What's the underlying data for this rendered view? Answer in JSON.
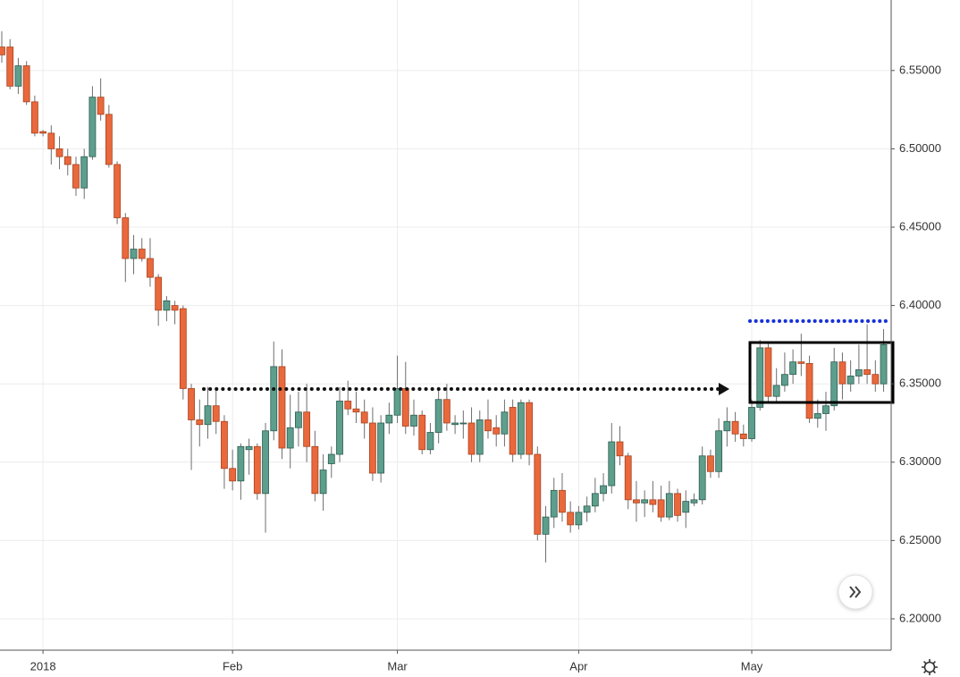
{
  "chart_data": {
    "type": "candlestick",
    "up_color": "#5d9e8d",
    "up_border": "#2e5d51",
    "down_color": "#e9683c",
    "down_border": "#a8431f",
    "wick_color": "#6e6e70",
    "grid": true,
    "ylim": [
      6.18,
      6.595
    ],
    "yticks": [
      {
        "value": 6.2,
        "label": "6.20000"
      },
      {
        "value": 6.25,
        "label": "6.25000"
      },
      {
        "value": 6.3,
        "label": "6.30000"
      },
      {
        "value": 6.35,
        "label": "6.35000"
      },
      {
        "value": 6.4,
        "label": "6.40000"
      },
      {
        "value": 6.45,
        "label": "6.45000"
      },
      {
        "value": 6.5,
        "label": "6.50000"
      },
      {
        "value": 6.55,
        "label": "6.55000"
      }
    ],
    "categories": [
      null,
      null,
      null,
      null,
      null,
      "2018",
      null,
      null,
      null,
      null,
      null,
      null,
      null,
      null,
      null,
      null,
      null,
      null,
      null,
      null,
      null,
      null,
      null,
      null,
      null,
      null,
      null,
      null,
      "Feb",
      null,
      null,
      null,
      null,
      null,
      null,
      null,
      null,
      null,
      null,
      null,
      null,
      null,
      null,
      null,
      null,
      null,
      null,
      null,
      "Mar",
      null,
      null,
      null,
      null,
      null,
      null,
      null,
      null,
      null,
      null,
      null,
      null,
      null,
      null,
      null,
      null,
      null,
      null,
      null,
      null,
      null,
      "Apr",
      null,
      null,
      null,
      null,
      null,
      null,
      null,
      null,
      null,
      null,
      null,
      null,
      null,
      null,
      null,
      null,
      null,
      null,
      null,
      null,
      "May",
      null,
      null,
      null,
      null,
      null,
      null,
      null,
      null,
      null,
      null,
      null,
      null,
      null,
      null,
      null,
      null
    ],
    "ohlc": [
      [
        6.565,
        6.575,
        6.555,
        6.56
      ],
      [
        6.565,
        6.57,
        6.538,
        6.54
      ],
      [
        6.54,
        6.558,
        6.535,
        6.553
      ],
      [
        6.553,
        6.556,
        6.528,
        6.53
      ],
      [
        6.53,
        6.534,
        6.508,
        6.51
      ],
      [
        6.511,
        6.512,
        6.508,
        6.51
      ],
      [
        6.51,
        6.515,
        6.49,
        6.5
      ],
      [
        6.5,
        6.508,
        6.487,
        6.495
      ],
      [
        6.495,
        6.5,
        6.483,
        6.49
      ],
      [
        6.49,
        6.495,
        6.47,
        6.475
      ],
      [
        6.475,
        6.5,
        6.468,
        6.495
      ],
      [
        6.495,
        6.54,
        6.493,
        6.533
      ],
      [
        6.533,
        6.545,
        6.518,
        6.522
      ],
      [
        6.522,
        6.528,
        6.488,
        6.49
      ],
      [
        6.49,
        6.492,
        6.452,
        6.456
      ],
      [
        6.456,
        6.459,
        6.415,
        6.43
      ],
      [
        6.43,
        6.445,
        6.42,
        6.436
      ],
      [
        6.436,
        6.443,
        6.428,
        6.43
      ],
      [
        6.43,
        6.443,
        6.412,
        6.418
      ],
      [
        6.418,
        6.42,
        6.387,
        6.397
      ],
      [
        6.397,
        6.406,
        6.39,
        6.403
      ],
      [
        6.4,
        6.403,
        6.388,
        6.397
      ],
      [
        6.398,
        6.4,
        6.34,
        6.347
      ],
      [
        6.347,
        6.35,
        6.295,
        6.327
      ],
      [
        6.327,
        6.34,
        6.31,
        6.324
      ],
      [
        6.324,
        6.348,
        6.315,
        6.336
      ],
      [
        6.336,
        6.348,
        6.318,
        6.326
      ],
      [
        6.326,
        6.33,
        6.283,
        6.296
      ],
      [
        6.296,
        6.308,
        6.282,
        6.288
      ],
      [
        6.288,
        6.312,
        6.276,
        6.31
      ],
      [
        6.308,
        6.315,
        6.292,
        6.31
      ],
      [
        6.31,
        6.312,
        6.276,
        6.28
      ],
      [
        6.28,
        6.325,
        6.255,
        6.32
      ],
      [
        6.32,
        6.377,
        6.314,
        6.361
      ],
      [
        6.361,
        6.372,
        6.302,
        6.309
      ],
      [
        6.309,
        6.343,
        6.296,
        6.322
      ],
      [
        6.322,
        6.345,
        6.31,
        6.332
      ],
      [
        6.332,
        6.35,
        6.3,
        6.31
      ],
      [
        6.31,
        6.32,
        6.275,
        6.28
      ],
      [
        6.28,
        6.305,
        6.269,
        6.295
      ],
      [
        6.299,
        6.31,
        6.29,
        6.305
      ],
      [
        6.305,
        6.348,
        6.3,
        6.339
      ],
      [
        6.339,
        6.352,
        6.33,
        6.334
      ],
      [
        6.334,
        6.345,
        6.325,
        6.332
      ],
      [
        6.332,
        6.34,
        6.315,
        6.325
      ],
      [
        6.325,
        6.335,
        6.288,
        6.293
      ],
      [
        6.293,
        6.33,
        6.287,
        6.325
      ],
      [
        6.325,
        6.338,
        6.318,
        6.33
      ],
      [
        6.33,
        6.368,
        6.325,
        6.347
      ],
      [
        6.347,
        6.364,
        6.318,
        6.323
      ],
      [
        6.323,
        6.34,
        6.317,
        6.33
      ],
      [
        6.33,
        6.333,
        6.305,
        6.308
      ],
      [
        6.308,
        6.325,
        6.305,
        6.319
      ],
      [
        6.319,
        6.348,
        6.312,
        6.34
      ],
      [
        6.34,
        6.35,
        6.32,
        6.325
      ],
      [
        6.324,
        6.33,
        6.318,
        6.325
      ],
      [
        6.325,
        6.333,
        6.315,
        6.325
      ],
      [
        6.325,
        6.335,
        6.3,
        6.305
      ],
      [
        6.305,
        6.333,
        6.3,
        6.327
      ],
      [
        6.327,
        6.34,
        6.315,
        6.32
      ],
      [
        6.322,
        6.33,
        6.31,
        6.318
      ],
      [
        6.318,
        6.34,
        6.31,
        6.332
      ],
      [
        6.335,
        6.34,
        6.3,
        6.305
      ],
      [
        6.305,
        6.34,
        6.302,
        6.338
      ],
      [
        6.338,
        6.34,
        6.298,
        6.305
      ],
      [
        6.305,
        6.31,
        6.25,
        6.254
      ],
      [
        6.254,
        6.272,
        6.236,
        6.265
      ],
      [
        6.265,
        6.29,
        6.258,
        6.282
      ],
      [
        6.282,
        6.293,
        6.262,
        6.268
      ],
      [
        6.268,
        6.275,
        6.255,
        6.26
      ],
      [
        6.26,
        6.272,
        6.257,
        6.268
      ],
      [
        6.268,
        6.278,
        6.262,
        6.272
      ],
      [
        6.272,
        6.29,
        6.268,
        6.28
      ],
      [
        6.28,
        6.293,
        6.275,
        6.285
      ],
      [
        6.285,
        6.325,
        6.28,
        6.313
      ],
      [
        6.313,
        6.323,
        6.298,
        6.304
      ],
      [
        6.304,
        6.306,
        6.27,
        6.276
      ],
      [
        6.276,
        6.288,
        6.262,
        6.274
      ],
      [
        6.274,
        6.282,
        6.265,
        6.276
      ],
      [
        6.276,
        6.288,
        6.268,
        6.273
      ],
      [
        6.276,
        6.285,
        6.262,
        6.265
      ],
      [
        6.265,
        6.288,
        6.263,
        6.28
      ],
      [
        6.28,
        6.283,
        6.262,
        6.266
      ],
      [
        6.268,
        6.282,
        6.258,
        6.275
      ],
      [
        6.274,
        6.28,
        6.272,
        6.276
      ],
      [
        6.276,
        6.31,
        6.273,
        6.304
      ],
      [
        6.304,
        6.308,
        6.29,
        6.294
      ],
      [
        6.294,
        6.328,
        6.29,
        6.32
      ],
      [
        6.32,
        6.335,
        6.31,
        6.326
      ],
      [
        6.326,
        6.332,
        6.313,
        6.318
      ],
      [
        6.318,
        6.324,
        6.31,
        6.315
      ],
      [
        6.315,
        6.34,
        6.313,
        6.335
      ],
      [
        6.335,
        6.378,
        6.333,
        6.373
      ],
      [
        6.373,
        6.376,
        6.338,
        6.342
      ],
      [
        6.342,
        6.36,
        6.338,
        6.349
      ],
      [
        6.349,
        6.37,
        6.345,
        6.356
      ],
      [
        6.356,
        6.372,
        6.35,
        6.364
      ],
      [
        6.364,
        6.382,
        6.355,
        6.363
      ],
      [
        6.363,
        6.368,
        6.325,
        6.328
      ],
      [
        6.328,
        6.34,
        6.322,
        6.331
      ],
      [
        6.331,
        6.345,
        6.32,
        6.336
      ],
      [
        6.336,
        6.373,
        6.333,
        6.364
      ],
      [
        6.364,
        6.37,
        6.34,
        6.35
      ],
      [
        6.35,
        6.365,
        6.345,
        6.355
      ],
      [
        6.355,
        6.375,
        6.35,
        6.359
      ],
      [
        6.359,
        6.388,
        6.35,
        6.356
      ],
      [
        6.356,
        6.365,
        6.345,
        6.35
      ],
      [
        6.35,
        6.385,
        6.345,
        6.375
      ]
    ]
  }
}
